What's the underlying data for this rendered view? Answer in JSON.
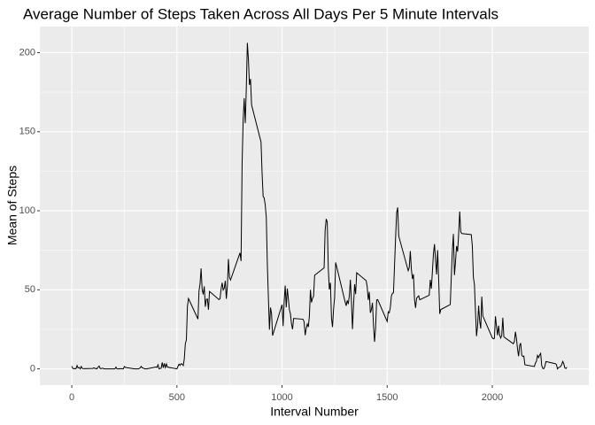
{
  "chart_data": {
    "type": "line",
    "title": "Average Number of Steps Taken Across All Days Per 5 Minute Intervals",
    "xlabel": "Interval Number",
    "ylabel": "Mean of Steps",
    "color": "#000000",
    "grid": true,
    "xlim": [
      -152,
      2459
    ],
    "ylim": [
      -10.3,
      216.5
    ],
    "xticks": [
      0,
      500,
      1000,
      1500,
      2000
    ],
    "yticks": [
      0,
      50,
      100,
      150,
      200
    ],
    "x": [
      0,
      5,
      10,
      15,
      20,
      25,
      30,
      35,
      40,
      45,
      50,
      55,
      100,
      105,
      110,
      115,
      120,
      125,
      130,
      135,
      140,
      145,
      150,
      155,
      200,
      205,
      210,
      215,
      220,
      225,
      230,
      235,
      240,
      245,
      250,
      255,
      300,
      305,
      310,
      315,
      320,
      325,
      330,
      335,
      340,
      345,
      350,
      355,
      400,
      405,
      410,
      415,
      420,
      425,
      430,
      435,
      440,
      445,
      450,
      455,
      500,
      505,
      510,
      515,
      520,
      525,
      530,
      535,
      540,
      545,
      550,
      555,
      600,
      605,
      610,
      615,
      620,
      625,
      630,
      635,
      640,
      645,
      650,
      655,
      700,
      705,
      710,
      715,
      720,
      725,
      730,
      735,
      740,
      745,
      750,
      755,
      800,
      805,
      810,
      815,
      820,
      825,
      830,
      835,
      840,
      845,
      850,
      855,
      900,
      905,
      910,
      915,
      920,
      925,
      930,
      935,
      940,
      945,
      950,
      955,
      1000,
      1005,
      1010,
      1015,
      1020,
      1025,
      1030,
      1035,
      1040,
      1045,
      1050,
      1055,
      1100,
      1105,
      1110,
      1115,
      1120,
      1125,
      1130,
      1135,
      1140,
      1145,
      1150,
      1155,
      1200,
      1205,
      1210,
      1215,
      1220,
      1225,
      1230,
      1235,
      1240,
      1245,
      1250,
      1255,
      1300,
      1305,
      1310,
      1315,
      1320,
      1325,
      1330,
      1335,
      1340,
      1345,
      1350,
      1355,
      1400,
      1405,
      1410,
      1415,
      1420,
      1425,
      1430,
      1435,
      1440,
      1445,
      1450,
      1455,
      1500,
      1505,
      1510,
      1515,
      1520,
      1525,
      1530,
      1535,
      1540,
      1545,
      1550,
      1555,
      1600,
      1605,
      1610,
      1615,
      1620,
      1625,
      1630,
      1635,
      1640,
      1645,
      1650,
      1655,
      1700,
      1705,
      1710,
      1715,
      1720,
      1725,
      1730,
      1735,
      1740,
      1745,
      1750,
      1755,
      1800,
      1805,
      1810,
      1815,
      1820,
      1825,
      1830,
      1835,
      1840,
      1845,
      1850,
      1855,
      1900,
      1905,
      1910,
      1915,
      1920,
      1925,
      1930,
      1935,
      1940,
      1945,
      1950,
      1955,
      2000,
      2005,
      2010,
      2015,
      2020,
      2025,
      2030,
      2035,
      2040,
      2045,
      2050,
      2055,
      2100,
      2105,
      2110,
      2115,
      2120,
      2125,
      2130,
      2135,
      2140,
      2145,
      2150,
      2155,
      2200,
      2205,
      2210,
      2215,
      2220,
      2225,
      2230,
      2235,
      2240,
      2245,
      2250,
      2255,
      2300,
      2305,
      2310,
      2315,
      2320,
      2325,
      2330,
      2335,
      2340,
      2345,
      2350,
      2355
    ],
    "values": [
      1.7,
      0.3,
      0.1,
      0.2,
      0.1,
      2.1,
      0.5,
      0.9,
      0,
      1.5,
      0.3,
      0.1,
      0.3,
      0.7,
      0.2,
      0.3,
      0,
      1.1,
      1.8,
      0.2,
      0.2,
      0.4,
      0.3,
      0,
      0,
      0,
      1.1,
      0,
      0,
      0.1,
      0,
      0.2,
      0,
      0,
      1.5,
      0.9,
      0,
      0,
      0,
      0,
      0.2,
      0.6,
      1.6,
      0.6,
      0.5,
      0.1,
      0,
      0,
      1.2,
      0.9,
      2.6,
      0,
      0.3,
      0.4,
      4.1,
      0.7,
      3.5,
      0.8,
      3.1,
      1.1,
      0,
      1.6,
      3,
      2.2,
      3.3,
      3,
      2.1,
      6.1,
      16,
      18.3,
      39.5,
      44.5,
      31.5,
      49.3,
      53.8,
      63.5,
      50,
      47.1,
      52.2,
      39.3,
      44,
      44.2,
      37.4,
      49,
      43.8,
      44.4,
      50.5,
      54.5,
      49.9,
      51,
      55.7,
      44.3,
      52.3,
      69.5,
      57.8,
      56.2,
      73.4,
      68.2,
      129.4,
      157.5,
      171.2,
      155.4,
      177.3,
      206.2,
      195.9,
      179.6,
      183.4,
      167,
      143.5,
      124,
      109.1,
      108.1,
      103.7,
      96,
      66.2,
      45.2,
      24.8,
      38.8,
      35,
      21.1,
      40.6,
      27,
      42.4,
      52.7,
      38.9,
      50.8,
      44.3,
      37.4,
      34.7,
      28.3,
      25.1,
      31.9,
      31.4,
      29.7,
      21.3,
      25.5,
      28.4,
      26.5,
      33.4,
      50,
      42,
      44.6,
      46,
      59.2,
      63.9,
      87.7,
      94.8,
      92.8,
      63.4,
      50.2,
      54.5,
      32.4,
      26.5,
      37.7,
      45.1,
      67.3,
      42.3,
      39.9,
      43.3,
      41,
      46.2,
      56.4,
      42.8,
      25.1,
      40,
      53.5,
      47.3,
      60.8,
      55.8,
      52,
      43.6,
      48.7,
      35.5,
      37.5,
      41.8,
      27.5,
      17.1,
      26.1,
      43.6,
      43.8,
      30,
      36.1,
      35.5,
      38.8,
      46,
      47.8,
      48.1,
      65.3,
      82.9,
      98.7,
      102.1,
      84,
      62.1,
      64.1,
      74.5,
      63.2,
      56.9,
      59.8,
      43.9,
      38.6,
      44.7,
      45.5,
      46.2,
      43.7,
      46.6,
      56.3,
      50.7,
      61.2,
      72.7,
      78.9,
      68.9,
      59.7,
      75.1,
      56.5,
      34.8,
      37.5,
      40.7,
      58,
      74.7,
      85.3,
      59.3,
      67.8,
      77.7,
      74.2,
      85.3,
      99.5,
      86.6,
      85.6,
      84.9,
      77.8,
      58,
      53.4,
      36.3,
      20.7,
      27.4,
      40,
      30.2,
      25.5,
      45.7,
      33.5,
      19.6,
      19,
      19.3,
      33.3,
      26.8,
      21.2,
      27.3,
      21.3,
      19.5,
      21.3,
      32.3,
      20.2,
      15.9,
      17.2,
      23.5,
      19.2,
      12.5,
      8,
      14.7,
      16.3,
      8.7,
      7.8,
      8.1,
      2.6,
      1.5,
      3.7,
      4.8,
      8.5,
      7.1,
      8.7,
      9.8,
      2.2,
      0.3,
      0.1,
      1.6,
      4.6,
      3.3,
      2.8,
      0,
      0.8,
      1,
      1.6,
      2.6,
      4.7,
      3.3,
      0.6,
      0.2,
      1.1
    ]
  }
}
